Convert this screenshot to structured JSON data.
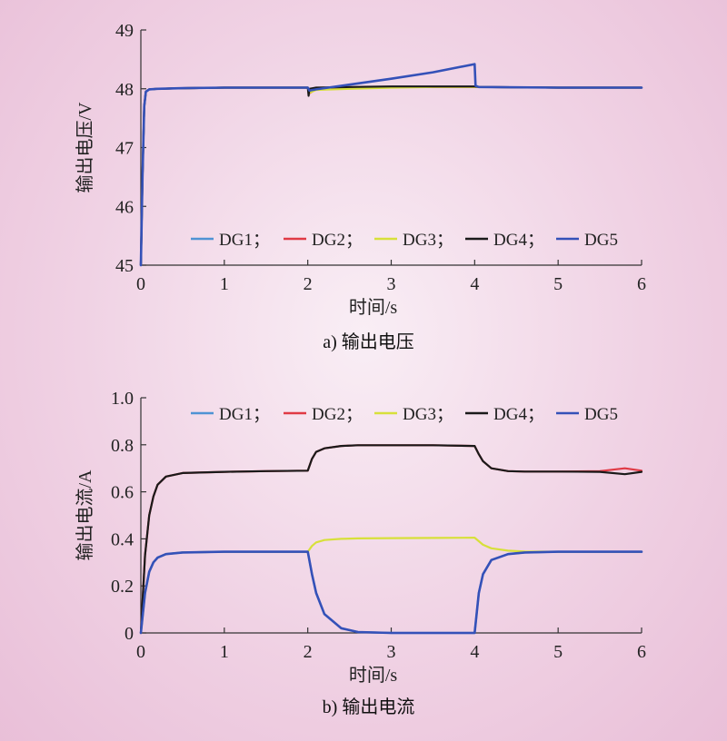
{
  "chart_data": [
    {
      "id": "a",
      "type": "line",
      "caption": "a) 输出电压",
      "xlabel": "时间/s",
      "ylabel": "输出电压/V",
      "xlim": [
        0,
        6
      ],
      "ylim": [
        45,
        49
      ],
      "xticks": [
        "0",
        "1",
        "2",
        "3",
        "4",
        "5",
        "6"
      ],
      "yticks": [
        "45",
        "46",
        "47",
        "48",
        "49"
      ],
      "legend": {
        "placement": "bottom",
        "entries": [
          "DG1；",
          "DG2；",
          "DG3；",
          "DG4；",
          "DG5"
        ]
      },
      "series": [
        {
          "name": "DG1",
          "color": "#4f93d4",
          "x": [
            0,
            0.02,
            0.04,
            0.06,
            0.1,
            0.2,
            0.5,
            1,
            1.5,
            2,
            2.02,
            2.1,
            2.5,
            3,
            3.5,
            4,
            4.05,
            5,
            6
          ],
          "y": [
            45,
            46.5,
            47.7,
            47.95,
            47.99,
            48.0,
            48.01,
            48.02,
            48.02,
            48.02,
            47.95,
            48.0,
            48.02,
            48.03,
            48.03,
            48.03,
            48.03,
            48.02,
            48.02
          ]
        },
        {
          "name": "DG2",
          "color": "#e03a45",
          "x": [
            0,
            0.02,
            0.04,
            0.06,
            0.1,
            0.2,
            0.5,
            1,
            1.5,
            2,
            2.02,
            2.1,
            2.5,
            3,
            3.5,
            4,
            4.05,
            5,
            6
          ],
          "y": [
            45,
            46.5,
            47.7,
            47.95,
            47.99,
            48.0,
            48.01,
            48.02,
            48.02,
            48.02,
            47.92,
            48.0,
            48.02,
            48.03,
            48.03,
            48.03,
            48.03,
            48.02,
            48.02
          ]
        },
        {
          "name": "DG3",
          "color": "#d7e03a",
          "x": [
            0,
            0.02,
            0.04,
            0.06,
            0.1,
            0.2,
            0.5,
            1,
            1.5,
            2,
            2.02,
            2.1,
            2.5,
            3,
            3.5,
            4,
            4.05,
            5,
            6
          ],
          "y": [
            45,
            46.5,
            47.7,
            47.95,
            47.99,
            48.0,
            48.01,
            48.02,
            48.02,
            48.02,
            47.93,
            47.98,
            48.0,
            48.02,
            48.03,
            48.03,
            48.03,
            48.02,
            48.02
          ]
        },
        {
          "name": "DG4",
          "color": "#1a1a1a",
          "x": [
            0,
            0.02,
            0.04,
            0.06,
            0.1,
            0.2,
            0.5,
            1,
            1.5,
            2,
            2.01,
            2.02,
            2.1,
            2.5,
            3,
            3.5,
            4,
            4.05,
            5,
            6
          ],
          "y": [
            45,
            46.5,
            47.7,
            47.95,
            47.99,
            48.0,
            48.01,
            48.02,
            48.02,
            48.02,
            47.88,
            48.0,
            48.02,
            48.03,
            48.04,
            48.04,
            48.04,
            48.03,
            48.02,
            48.02
          ]
        },
        {
          "name": "DG5",
          "color": "#3451b8",
          "x": [
            0,
            0.02,
            0.04,
            0.06,
            0.1,
            0.2,
            0.5,
            1,
            1.5,
            2,
            2.02,
            2.1,
            2.5,
            3,
            3.5,
            4,
            4.01,
            4.05,
            5,
            6
          ],
          "y": [
            45,
            46.5,
            47.7,
            47.95,
            47.99,
            48.0,
            48.01,
            48.02,
            48.02,
            48.02,
            47.97,
            47.99,
            48.07,
            48.17,
            48.28,
            48.42,
            48.05,
            48.03,
            48.02,
            48.02
          ]
        }
      ]
    },
    {
      "id": "b",
      "type": "line",
      "caption": "b) 输出电流",
      "xlabel": "时间/s",
      "ylabel": "输出电流/A",
      "xlim": [
        0,
        6
      ],
      "ylim": [
        0,
        1.0
      ],
      "xticks": [
        "0",
        "1",
        "2",
        "3",
        "4",
        "5",
        "6"
      ],
      "yticks": [
        "0",
        "0.2",
        "0.4",
        "0.6",
        "0.8",
        "1.0"
      ],
      "legend": {
        "placement": "top",
        "entries": [
          "DG1；",
          "DG2；",
          "DG3；",
          "DG4；",
          "DG5"
        ]
      },
      "series": [
        {
          "name": "DG1",
          "color": "#4f93d4",
          "x": [
            0,
            0.05,
            0.1,
            0.15,
            0.2,
            0.3,
            0.5,
            1,
            1.5,
            2,
            2.05,
            2.1,
            2.2,
            2.4,
            2.6,
            3,
            3.5,
            4,
            4.05,
            4.1,
            4.2,
            4.4,
            4.6,
            5,
            6
          ],
          "y": [
            0,
            0.17,
            0.26,
            0.3,
            0.32,
            0.335,
            0.342,
            0.345,
            0.345,
            0.345,
            0.25,
            0.17,
            0.08,
            0.02,
            0.004,
            0,
            0,
            0,
            0.17,
            0.25,
            0.31,
            0.335,
            0.342,
            0.345,
            0.345
          ]
        },
        {
          "name": "DG2",
          "color": "#e03a45",
          "x": [
            0,
            0.05,
            0.1,
            0.15,
            0.2,
            0.3,
            0.5,
            1,
            1.5,
            2,
            2.05,
            2.1,
            2.2,
            2.4,
            2.6,
            3,
            3.5,
            4,
            4.05,
            4.1,
            4.2,
            4.4,
            4.6,
            5,
            5.5,
            5.8,
            6
          ],
          "y": [
            0,
            0.33,
            0.5,
            0.58,
            0.63,
            0.665,
            0.68,
            0.685,
            0.688,
            0.69,
            0.74,
            0.77,
            0.785,
            0.795,
            0.798,
            0.798,
            0.798,
            0.795,
            0.76,
            0.73,
            0.7,
            0.688,
            0.686,
            0.686,
            0.688,
            0.7,
            0.69
          ]
        },
        {
          "name": "DG3",
          "color": "#d7e03a",
          "x": [
            0,
            0.05,
            0.1,
            0.15,
            0.2,
            0.3,
            0.5,
            1,
            1.5,
            2,
            2.05,
            2.1,
            2.2,
            2.4,
            2.6,
            3,
            3.5,
            4,
            4.05,
            4.1,
            4.2,
            4.4,
            4.6,
            5,
            6
          ],
          "y": [
            0,
            0.17,
            0.26,
            0.3,
            0.32,
            0.335,
            0.342,
            0.345,
            0.345,
            0.345,
            0.37,
            0.385,
            0.395,
            0.4,
            0.402,
            0.403,
            0.404,
            0.405,
            0.39,
            0.375,
            0.36,
            0.35,
            0.346,
            0.345,
            0.345
          ]
        },
        {
          "name": "DG4",
          "color": "#1a1a1a",
          "x": [
            0,
            0.05,
            0.1,
            0.15,
            0.2,
            0.3,
            0.5,
            1,
            1.5,
            2,
            2.05,
            2.1,
            2.2,
            2.4,
            2.6,
            3,
            3.5,
            4,
            4.05,
            4.1,
            4.2,
            4.4,
            4.6,
            5,
            5.5,
            5.8,
            6
          ],
          "y": [
            0,
            0.33,
            0.5,
            0.58,
            0.63,
            0.665,
            0.68,
            0.685,
            0.688,
            0.69,
            0.74,
            0.77,
            0.785,
            0.795,
            0.798,
            0.798,
            0.798,
            0.795,
            0.76,
            0.73,
            0.7,
            0.688,
            0.686,
            0.686,
            0.685,
            0.675,
            0.685
          ]
        },
        {
          "name": "DG5",
          "color": "#3451b8",
          "x": [
            0,
            0.05,
            0.1,
            0.15,
            0.2,
            0.3,
            0.5,
            1,
            1.5,
            2,
            2.05,
            2.1,
            2.2,
            2.4,
            2.6,
            3,
            3.5,
            4,
            4.05,
            4.1,
            4.2,
            4.4,
            4.6,
            5,
            6
          ],
          "y": [
            0,
            0.17,
            0.26,
            0.3,
            0.32,
            0.335,
            0.342,
            0.345,
            0.345,
            0.345,
            0.25,
            0.17,
            0.08,
            0.02,
            0.004,
            0,
            0,
            0,
            0.17,
            0.25,
            0.31,
            0.335,
            0.342,
            0.345,
            0.345
          ]
        }
      ]
    }
  ]
}
